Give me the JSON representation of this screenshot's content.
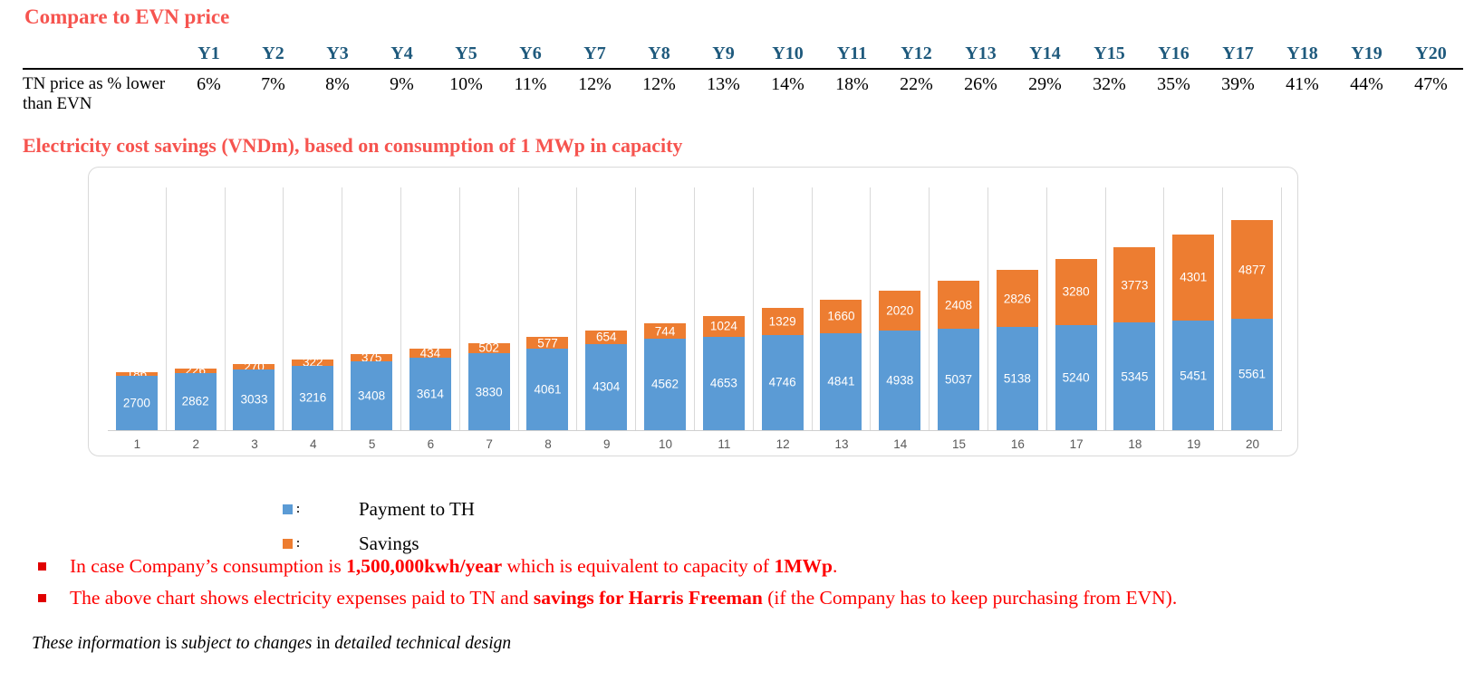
{
  "page": {
    "title": "Compare to EVN price",
    "chart_heading": "Electricity cost savings (VNDm), based on consumption of 1 MWp in capacity"
  },
  "table": {
    "row_label": "TN price as % lower than EVN",
    "columns": [
      "Y1",
      "Y2",
      "Y3",
      "Y4",
      "Y5",
      "Y6",
      "Y7",
      "Y8",
      "Y9",
      "Y10",
      "Y11",
      "Y12",
      "Y13",
      "Y14",
      "Y15",
      "Y16",
      "Y17",
      "Y18",
      "Y19",
      "Y20"
    ],
    "values": [
      "6%",
      "7%",
      "8%",
      "9%",
      "10%",
      "11%",
      "12%",
      "12%",
      "13%",
      "14%",
      "18%",
      "22%",
      "26%",
      "29%",
      "32%",
      "35%",
      "39%",
      "41%",
      "44%",
      "47%"
    ]
  },
  "chart_data": {
    "type": "bar",
    "stacked": true,
    "title": "Electricity cost savings (VNDm), based on consumption of 1 MWp in capacity",
    "categories": [
      "1",
      "2",
      "3",
      "4",
      "5",
      "6",
      "7",
      "8",
      "9",
      "10",
      "11",
      "12",
      "13",
      "14",
      "15",
      "16",
      "17",
      "18",
      "19",
      "20"
    ],
    "series": [
      {
        "name": "Payment to TH",
        "color": "#5B9BD5",
        "values": [
          2700,
          2862,
          3033,
          3216,
          3408,
          3614,
          3830,
          4061,
          4304,
          4562,
          4653,
          4746,
          4841,
          4938,
          5037,
          5138,
          5240,
          5345,
          5451,
          5561
        ]
      },
      {
        "name": "Savings",
        "color": "#ED7D31",
        "values": [
          186,
          226,
          270,
          322,
          375,
          434,
          502,
          577,
          654,
          744,
          1024,
          1329,
          1660,
          2020,
          2408,
          2826,
          3280,
          3773,
          4301,
          4877
        ]
      }
    ],
    "ylim": [
      0,
      12000
    ],
    "data_labels": true,
    "gridlines": "vertical-category-separators",
    "legend_position": "below-left"
  },
  "legend": {
    "items": [
      {
        "label": "Payment to TH",
        "color": "#5B9BD5"
      },
      {
        "label": "Savings",
        "color": "#ED7D31"
      }
    ]
  },
  "bullets": [
    {
      "segments": [
        {
          "text": "In case Company’s consumption is ",
          "bold": false
        },
        {
          "text": "1,500,000kwh/year",
          "bold": true
        },
        {
          "text": " which is equivalent to capacity of ",
          "bold": false
        },
        {
          "text": "1MWp",
          "bold": true
        },
        {
          "text": ".",
          "bold": false
        }
      ]
    },
    {
      "segments": [
        {
          "text": "The above chart shows electricity expenses paid to TN and ",
          "bold": false
        },
        {
          "text": "savings for Harris Freeman",
          "bold": true
        },
        {
          "text": " (if the Company has to keep purchasing from EVN).",
          "bold": false
        }
      ]
    }
  ],
  "footer": {
    "segments": [
      {
        "text": "These information",
        "italic": true
      },
      {
        "text": " is ",
        "italic": false
      },
      {
        "text": "subject to changes",
        "italic": true
      },
      {
        "text": " in ",
        "italic": false
      },
      {
        "text": "detailed  technical design",
        "italic": true
      }
    ]
  },
  "colors": {
    "heading_red": "#F6544F",
    "bullet_red": "#FE0000",
    "table_header_blue": "#1F5A7D",
    "bar_blue": "#5B9BD5",
    "bar_orange": "#ED7D31",
    "gridline": "#D9D9D9",
    "axis_text": "#595959"
  }
}
